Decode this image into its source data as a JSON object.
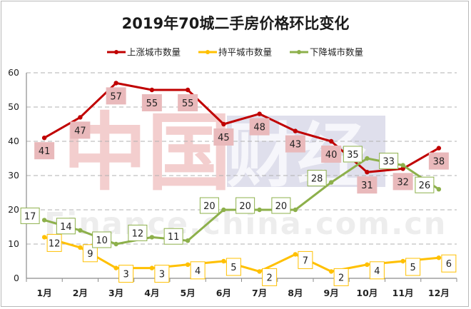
{
  "chart_data": {
    "type": "line",
    "title": "2019年70城二手房价格环比变化",
    "categories": [
      "1月",
      "2月",
      "3月",
      "4月",
      "5月",
      "6月",
      "7月",
      "8月",
      "9月",
      "10月",
      "11月",
      "12月"
    ],
    "ylim": [
      0,
      60
    ],
    "yticks": [
      0,
      10,
      20,
      30,
      40,
      50,
      60
    ],
    "grid": true,
    "legend_position": "top",
    "series": [
      {
        "name": "上涨城市数量",
        "color": "#c00000",
        "values": [
          41,
          47,
          57,
          55,
          55,
          45,
          48,
          43,
          40,
          31,
          32,
          38
        ]
      },
      {
        "name": "持平城市数量",
        "color": "#ffc000",
        "values": [
          12,
          9,
          3,
          3,
          4,
          5,
          2,
          7,
          2,
          4,
          5,
          6
        ]
      },
      {
        "name": "下降城市数量",
        "color": "#8db04b",
        "values": [
          17,
          14,
          10,
          12,
          11,
          20,
          20,
          20,
          28,
          35,
          33,
          26
        ]
      }
    ]
  },
  "watermark": {
    "logo_text": "中国",
    "brand_text": "财经",
    "url_text": "Finance.china.com.cn"
  }
}
